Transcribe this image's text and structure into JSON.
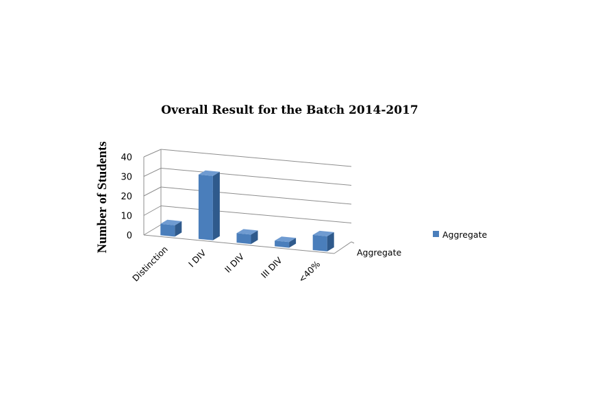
{
  "chart_data": {
    "type": "bar",
    "title": "Overall Result for the Batch 2014-2017",
    "xlabel": "",
    "ylabel": "Number of Students",
    "ylim": [
      0,
      40
    ],
    "yticks": [
      0,
      10,
      20,
      30,
      40
    ],
    "categories": [
      "Distinction",
      "I DIV",
      "II DIV",
      "III DIV",
      "<40%"
    ],
    "depth_axis_label": "Aggregate",
    "series": [
      {
        "name": "Aggregate",
        "values": [
          6,
          34,
          5,
          3,
          8
        ],
        "color": "#4a7ebb"
      }
    ],
    "legend": {
      "position": "right",
      "entries": [
        "Aggregate"
      ]
    },
    "grid": true,
    "style": "3d"
  }
}
